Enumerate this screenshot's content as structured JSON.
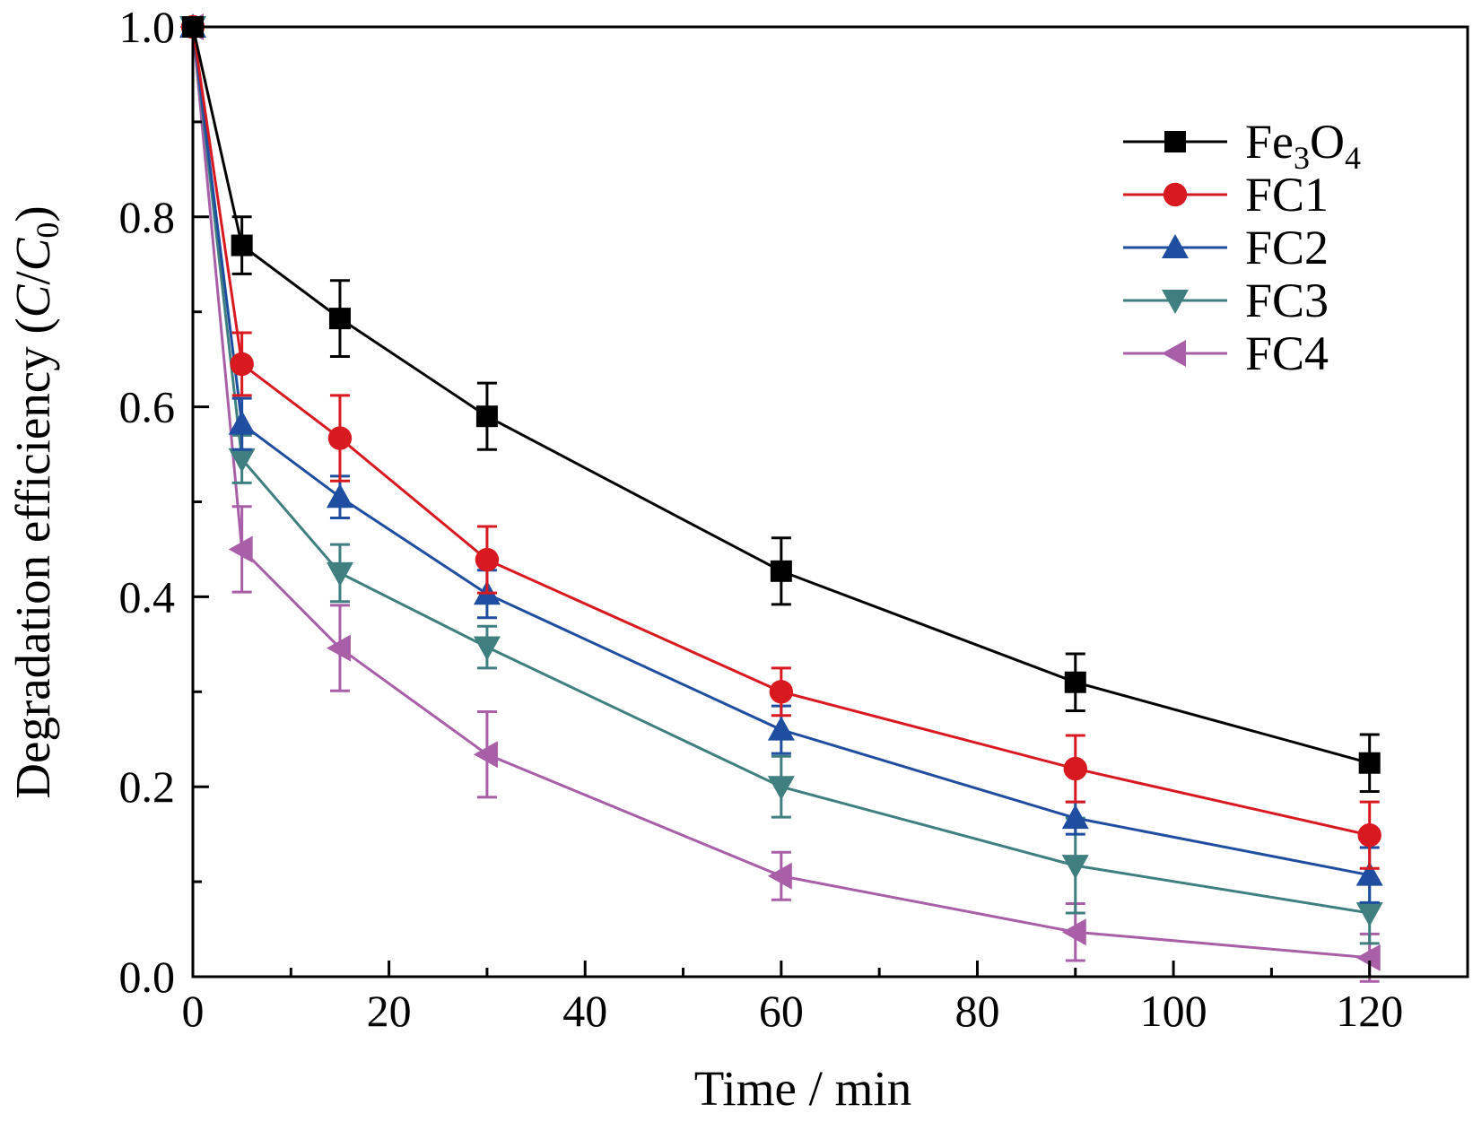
{
  "chart_data": {
    "type": "line",
    "xlabel": "Time / min",
    "ylabel": {
      "prefix": "Degradation efficiency (",
      "c": "C",
      "slash": "/",
      "c0": "C",
      "c0_sub": "0",
      "suffix": ")"
    },
    "xlim": [
      0,
      130
    ],
    "ylim": [
      0,
      1.0
    ],
    "xticks": [
      "0",
      "20",
      "40",
      "60",
      "80",
      "100",
      "120"
    ],
    "yticks": [
      "0.0",
      "0.2",
      "0.4",
      "0.6",
      "0.8",
      "1.0"
    ],
    "x": [
      0,
      5,
      15,
      30,
      60,
      90,
      120
    ],
    "legend_position": "top-right",
    "grid": false,
    "series": [
      {
        "name": "Fe3O4",
        "legend": {
          "main": "Fe",
          "sub1": "3",
          "mid": "O",
          "sub2": "4"
        },
        "marker": "square",
        "color": "#000000",
        "values": [
          1.0,
          0.77,
          0.693,
          0.59,
          0.427,
          0.31,
          0.225
        ],
        "errors": [
          0,
          0.03,
          0.04,
          0.035,
          0.035,
          0.03,
          0.03
        ]
      },
      {
        "name": "FC1",
        "legend": {
          "main": "FC1"
        },
        "marker": "circle",
        "color": "#d91920",
        "values": [
          1.0,
          0.645,
          0.567,
          0.439,
          0.3,
          0.219,
          0.149
        ],
        "errors": [
          0,
          0.033,
          0.045,
          0.035,
          0.025,
          0.035,
          0.035
        ]
      },
      {
        "name": "FC2",
        "legend": {
          "main": "FC2"
        },
        "marker": "triangle-up",
        "color": "#1f4ea1",
        "values": [
          1.0,
          0.582,
          0.505,
          0.403,
          0.26,
          0.167,
          0.107
        ],
        "errors": [
          0,
          0.027,
          0.022,
          0.025,
          0.025,
          0.017,
          0.029
        ]
      },
      {
        "name": "FC3",
        "legend": {
          "main": "FC3"
        },
        "marker": "triangle-down",
        "color": "#3f7f80",
        "values": [
          1.0,
          0.545,
          0.425,
          0.347,
          0.2,
          0.117,
          0.067
        ],
        "errors": [
          0,
          0.025,
          0.03,
          0.022,
          0.032,
          0.05,
          0.032
        ]
      },
      {
        "name": "FC4",
        "legend": {
          "main": "FC4"
        },
        "marker": "triangle-left",
        "color": "#a95fa8",
        "values": [
          1.0,
          0.45,
          0.346,
          0.234,
          0.106,
          0.047,
          0.02
        ],
        "errors": [
          0,
          0.045,
          0.045,
          0.045,
          0.025,
          0.03,
          0.025
        ]
      }
    ]
  }
}
